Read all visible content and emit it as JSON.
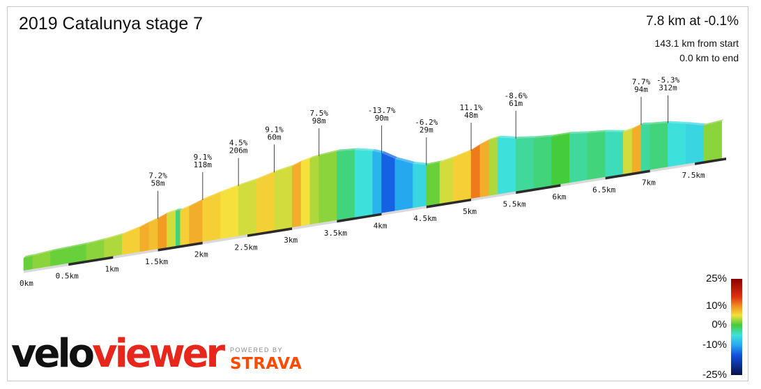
{
  "title": "2019 Catalunya stage 7",
  "summary": "7.8 km at -0.1%",
  "from_start": "143.1 km from start",
  "to_end": "0.0 km to end",
  "brand": {
    "velo": "velo",
    "viewer": "viewer",
    "powered_by": "POWERED BY",
    "strava": "STRAVA"
  },
  "colors": {
    "brand_red": "#e8271c",
    "strava_orange": "#fc4c02"
  },
  "chart_data": {
    "type": "area",
    "xlabel": "",
    "ylabel": "",
    "x_ticks": [
      "0km",
      "0.5km",
      "1km",
      "1.5km",
      "2km",
      "2.5km",
      "3km",
      "3.5km",
      "4km",
      "4.5km",
      "5km",
      "5.5km",
      "6km",
      "6.5km",
      "7km",
      "7.5km"
    ],
    "distance_km": [
      0,
      0.1,
      0.3,
      0.5,
      0.7,
      0.9,
      1.1,
      1.3,
      1.4,
      1.5,
      1.6,
      1.7,
      1.75,
      1.85,
      2.0,
      2.2,
      2.4,
      2.6,
      2.8,
      3.0,
      3.1,
      3.2,
      3.3,
      3.5,
      3.7,
      3.9,
      4.0,
      4.15,
      4.35,
      4.5,
      4.65,
      4.8,
      5.0,
      5.1,
      5.2,
      5.3,
      5.5,
      5.7,
      5.9,
      6.1,
      6.3,
      6.5,
      6.7,
      6.8,
      6.9,
      7.0,
      7.2,
      7.4,
      7.6,
      7.8
    ],
    "gradient_pct": [
      -3,
      1,
      2,
      1,
      1,
      2,
      3,
      6,
      8,
      7,
      9,
      4,
      -2,
      6,
      8,
      6,
      5,
      4,
      6,
      4,
      8,
      5,
      3,
      2,
      -2,
      -5,
      -9,
      -14,
      -10,
      -6,
      1,
      4,
      6,
      11,
      8,
      3,
      -5,
      -3,
      -2,
      0,
      -3,
      -2,
      -4,
      4,
      8,
      -3,
      -2,
      -5,
      -6,
      2
    ],
    "annotations": [
      {
        "gradient": "7.2%",
        "length": "58m",
        "km": 1.5
      },
      {
        "gradient": "9.1%",
        "length": "118m",
        "km": 1.95
      },
      {
        "gradient": "4.5%",
        "length": "206m",
        "km": 2.45
      },
      {
        "gradient": "9.1%",
        "length": "60m",
        "km": 2.9
      },
      {
        "gradient": "7.5%",
        "length": "98m",
        "km": 3.3
      },
      {
        "gradient": "-13.7%",
        "length": "90m",
        "km": 4.05
      },
      {
        "gradient": "-6.2%",
        "length": "29m",
        "km": 4.45
      },
      {
        "gradient": "11.1%",
        "length": "48m",
        "km": 5.05
      },
      {
        "gradient": "-8.6%",
        "length": "61m",
        "km": 5.45
      },
      {
        "gradient": "7.7%",
        "length": "94m",
        "km": 6.9
      },
      {
        "gradient": "-5.3%",
        "length": "312m",
        "km": 7.25
      }
    ],
    "color_scale": {
      "labels": [
        "25%",
        "10%",
        "0%",
        "-10%",
        "-25%"
      ],
      "stops": [
        {
          "pct": 25,
          "color": "#8b0000"
        },
        {
          "pct": 15,
          "color": "#e03010"
        },
        {
          "pct": 10,
          "color": "#f08c1e"
        },
        {
          "pct": 5,
          "color": "#f5e03c"
        },
        {
          "pct": 0,
          "color": "#44cc3a"
        },
        {
          "pct": -5,
          "color": "#3ee0dc"
        },
        {
          "pct": -10,
          "color": "#26a8f0"
        },
        {
          "pct": -15,
          "color": "#1050e0"
        },
        {
          "pct": -25,
          "color": "#08104a"
        }
      ]
    }
  }
}
